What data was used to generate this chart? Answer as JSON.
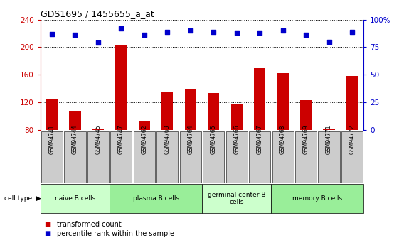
{
  "title": "GDS1695 / 1455655_a_at",
  "samples": [
    "GSM94741",
    "GSM94744",
    "GSM94745",
    "GSM94747",
    "GSM94762",
    "GSM94763",
    "GSM94764",
    "GSM94765",
    "GSM94766",
    "GSM94767",
    "GSM94768",
    "GSM94769",
    "GSM94771",
    "GSM94772"
  ],
  "transformed_count": [
    125,
    108,
    82,
    204,
    93,
    135,
    140,
    133,
    117,
    170,
    162,
    123,
    82,
    158
  ],
  "percentile_rank": [
    87,
    86,
    79,
    92,
    86,
    89,
    90,
    89,
    88,
    88,
    90,
    86,
    80,
    89
  ],
  "ylim_left": [
    80,
    240
  ],
  "ylim_right": [
    0,
    100
  ],
  "yticks_left": [
    80,
    120,
    160,
    200,
    240
  ],
  "yticks_right": [
    0,
    25,
    50,
    75,
    100
  ],
  "bar_color": "#cc0000",
  "dot_color": "#0000cc",
  "cell_groups": [
    {
      "label": "naive B cells",
      "start": 0,
      "end": 3,
      "color": "#ccffcc"
    },
    {
      "label": "plasma B cells",
      "start": 3,
      "end": 7,
      "color": "#99ee99"
    },
    {
      "label": "germinal center B\ncells",
      "start": 7,
      "end": 10,
      "color": "#ccffcc"
    },
    {
      "label": "memory B cells",
      "start": 10,
      "end": 14,
      "color": "#99ee99"
    }
  ],
  "legend_red": "transformed count",
  "legend_blue": "percentile rank within the sample",
  "cell_type_label": "cell type",
  "tick_bg": "#cccccc"
}
